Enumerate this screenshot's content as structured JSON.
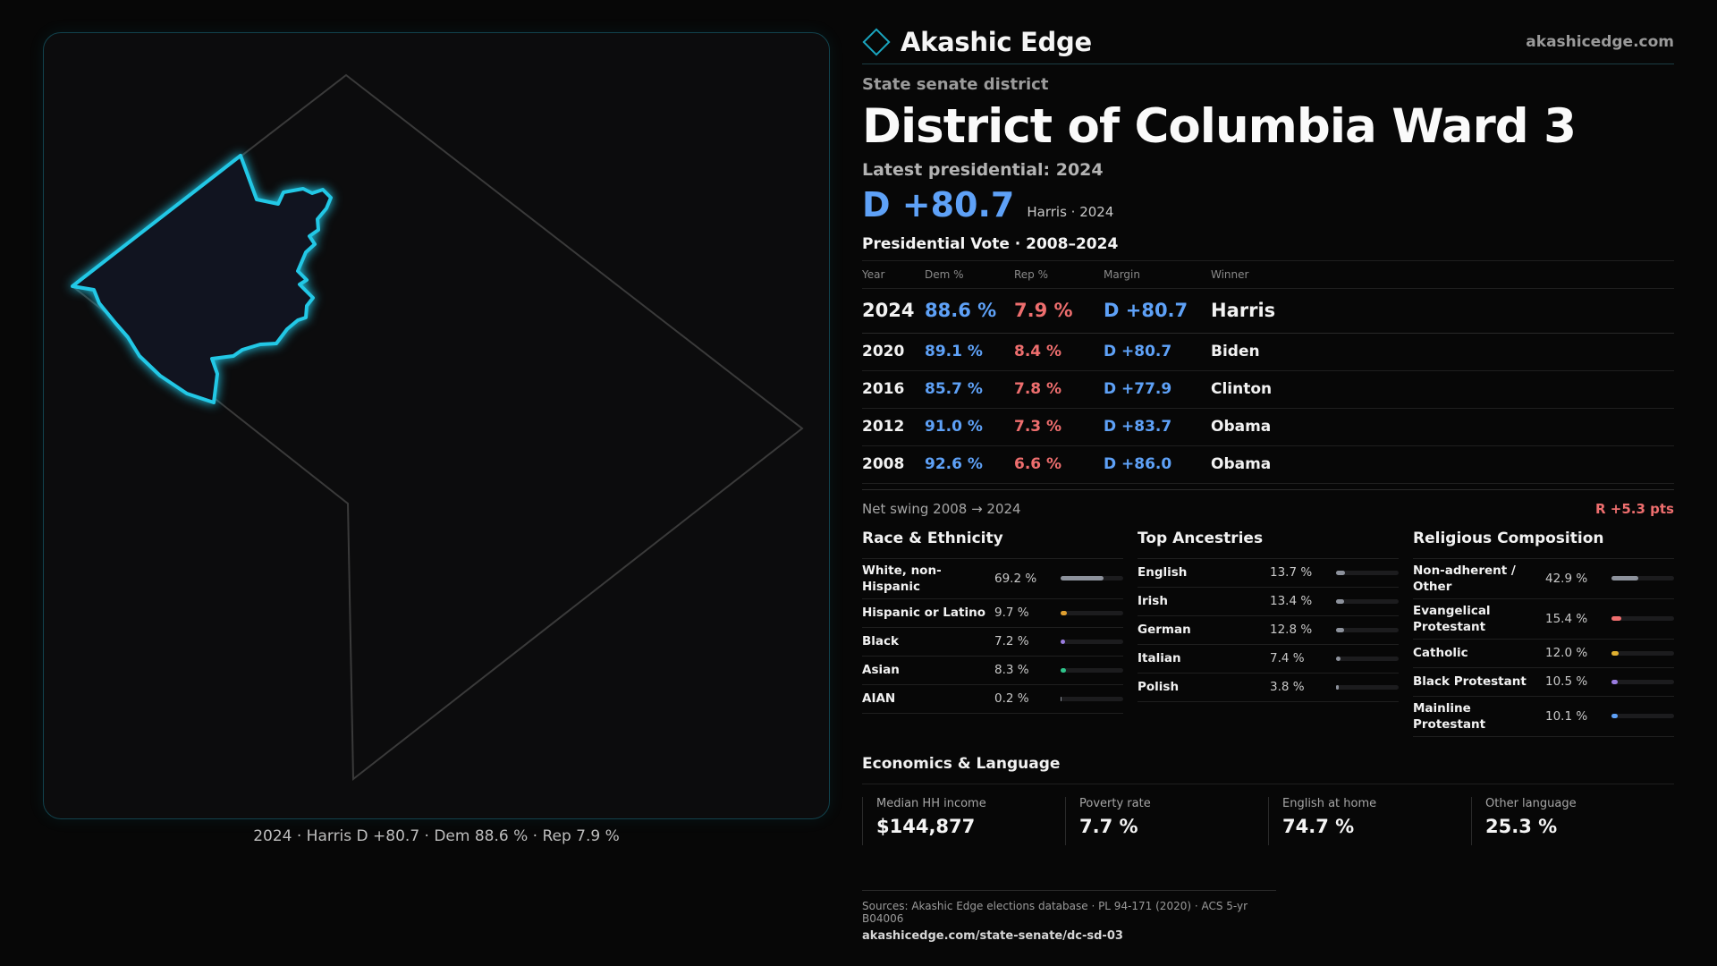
{
  "map": {
    "caption": "2024 · Harris D +80.7 · Dem 88.6 % · Rep 7.9 %",
    "highlight_color": "#22c8e6"
  },
  "header": {
    "brand": "Akashic Edge",
    "site": "akashicedge.com",
    "kicker": "State senate district",
    "title": "District of Columbia Ward 3",
    "latest": "Latest presidential: 2024",
    "margin": "D +80.7",
    "margin_sub": "Harris · 2024"
  },
  "presidential": {
    "title": "Presidential Vote · 2008–2024",
    "columns": [
      "Year",
      "Dem %",
      "Rep %",
      "Margin",
      "Winner"
    ],
    "rows": [
      {
        "year": "2024",
        "dem": "88.6 %",
        "rep": "7.9 %",
        "margin": "D +80.7",
        "winner": "Harris"
      },
      {
        "year": "2020",
        "dem": "89.1 %",
        "rep": "8.4 %",
        "margin": "D +80.7",
        "winner": "Biden"
      },
      {
        "year": "2016",
        "dem": "85.7 %",
        "rep": "7.8 %",
        "margin": "D +77.9",
        "winner": "Clinton"
      },
      {
        "year": "2012",
        "dem": "91.0 %",
        "rep": "7.3 %",
        "margin": "D +83.7",
        "winner": "Obama"
      },
      {
        "year": "2008",
        "dem": "92.6 %",
        "rep": "6.6 %",
        "margin": "D +86.0",
        "winner": "Obama"
      }
    ],
    "swing_label": "Net swing 2008 → 2024",
    "swing_value": "R +5.3 pts"
  },
  "race": {
    "title": "Race & Ethnicity",
    "rows": [
      {
        "label": "White, non-Hispanic",
        "value": "69.2 %",
        "pct": 69.2,
        "color": "#8d929c"
      },
      {
        "label": "Hispanic or Latino",
        "value": "9.7 %",
        "pct": 9.7,
        "color": "#e0a030"
      },
      {
        "label": "Black",
        "value": "7.2 %",
        "pct": 7.2,
        "color": "#9a7ce0"
      },
      {
        "label": "Asian",
        "value": "8.3 %",
        "pct": 8.3,
        "color": "#2ec48a"
      },
      {
        "label": "AIAN",
        "value": "0.2 %",
        "pct": 0.2,
        "color": "#8d929c"
      }
    ]
  },
  "ancestry": {
    "title": "Top Ancestries",
    "rows": [
      {
        "label": "English",
        "value": "13.7 %",
        "pct": 13.7,
        "color": "#8d929c"
      },
      {
        "label": "Irish",
        "value": "13.4 %",
        "pct": 13.4,
        "color": "#8d929c"
      },
      {
        "label": "German",
        "value": "12.8 %",
        "pct": 12.8,
        "color": "#8d929c"
      },
      {
        "label": "Italian",
        "value": "7.4 %",
        "pct": 7.4,
        "color": "#8d929c"
      },
      {
        "label": "Polish",
        "value": "3.8 %",
        "pct": 3.8,
        "color": "#8d929c"
      }
    ]
  },
  "religion": {
    "title": "Religious Composition",
    "rows": [
      {
        "label": "Non-adherent / Other",
        "value": "42.9 %",
        "pct": 42.9,
        "color": "#8d929c"
      },
      {
        "label": "Evangelical Protestant",
        "value": "15.4 %",
        "pct": 15.4,
        "color": "#ee6e6e"
      },
      {
        "label": "Catholic",
        "value": "12.0 %",
        "pct": 12.0,
        "color": "#e0b030"
      },
      {
        "label": "Black Protestant",
        "value": "10.5 %",
        "pct": 10.5,
        "color": "#9a7ce0"
      },
      {
        "label": "Mainline Protestant",
        "value": "10.1 %",
        "pct": 10.1,
        "color": "#5ea1f7"
      }
    ]
  },
  "economics": {
    "title": "Economics & Language",
    "cells": [
      {
        "label": "Median HH income",
        "value": "$144,877"
      },
      {
        "label": "Poverty rate",
        "value": "7.7 %"
      },
      {
        "label": "English at home",
        "value": "74.7 %"
      },
      {
        "label": "Other language",
        "value": "25.3 %"
      }
    ]
  },
  "sources": {
    "line1": "Sources: Akashic Edge elections database · PL 94-171 (2020) · ACS 5-yr B04006",
    "line2": "akashicedge.com/state-senate/dc-sd-03"
  }
}
